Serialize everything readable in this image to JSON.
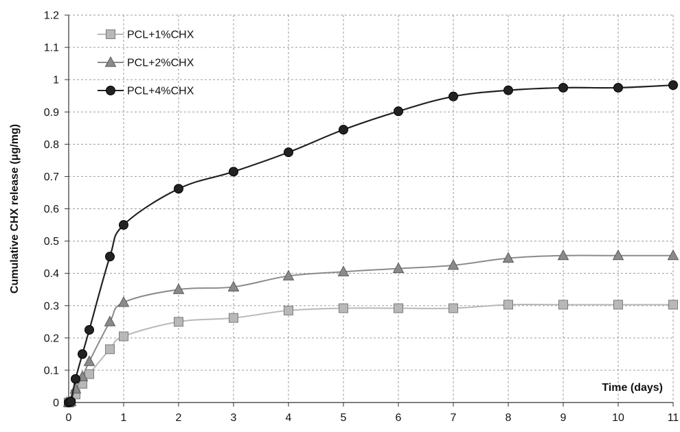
{
  "chart_data": {
    "type": "line",
    "xlabel": "Time (days)",
    "ylabel": "Cumulative CHX release (μg/mg)",
    "xlim": [
      0,
      11
    ],
    "ylim": [
      0,
      1.2
    ],
    "x_ticks": [
      "0",
      "1",
      "2",
      "3",
      "4",
      "5",
      "6",
      "7",
      "8",
      "9",
      "10",
      "11"
    ],
    "y_ticks": [
      "0",
      "0.1",
      "0.2",
      "0.3",
      "0.4",
      "0.5",
      "0.6",
      "0.7",
      "0.8",
      "0.9",
      "1",
      "1.1",
      "1.2"
    ],
    "grid": true,
    "legend_position": "top-left",
    "series": [
      {
        "name": "PCL+1%CHX",
        "marker": "square",
        "color": "#b8b8b8",
        "stroke": "#7a7a7a",
        "x": [
          0,
          0.04,
          0.125,
          0.25,
          0.375,
          0.75,
          1,
          2,
          3,
          4,
          5,
          6,
          7,
          8,
          9,
          10,
          11
        ],
        "y": [
          0,
          0.003,
          0.025,
          0.058,
          0.088,
          0.165,
          0.205,
          0.25,
          0.262,
          0.285,
          0.292,
          0.292,
          0.292,
          0.303,
          0.303,
          0.303,
          0.303
        ]
      },
      {
        "name": "PCL+2%CHX",
        "marker": "triangle",
        "color": "#8a8a8a",
        "stroke": "#5a5a5a",
        "x": [
          0,
          0.04,
          0.125,
          0.25,
          0.375,
          0.75,
          1,
          2,
          3,
          4,
          5,
          6,
          7,
          8,
          9,
          10,
          11
        ],
        "y": [
          0,
          0.003,
          0.042,
          0.08,
          0.127,
          0.25,
          0.31,
          0.35,
          0.358,
          0.392,
          0.405,
          0.415,
          0.425,
          0.447,
          0.455,
          0.455,
          0.455
        ]
      },
      {
        "name": "PCL+4%CHX",
        "marker": "circle",
        "color": "#222222",
        "stroke": "#000000",
        "x": [
          0,
          0.04,
          0.125,
          0.25,
          0.375,
          0.75,
          1,
          2,
          3,
          4,
          5,
          6,
          7,
          8,
          9,
          10,
          11
        ],
        "y": [
          0,
          0.003,
          0.073,
          0.15,
          0.225,
          0.452,
          0.55,
          0.662,
          0.715,
          0.775,
          0.845,
          0.902,
          0.948,
          0.967,
          0.975,
          0.975,
          0.983
        ]
      }
    ]
  }
}
